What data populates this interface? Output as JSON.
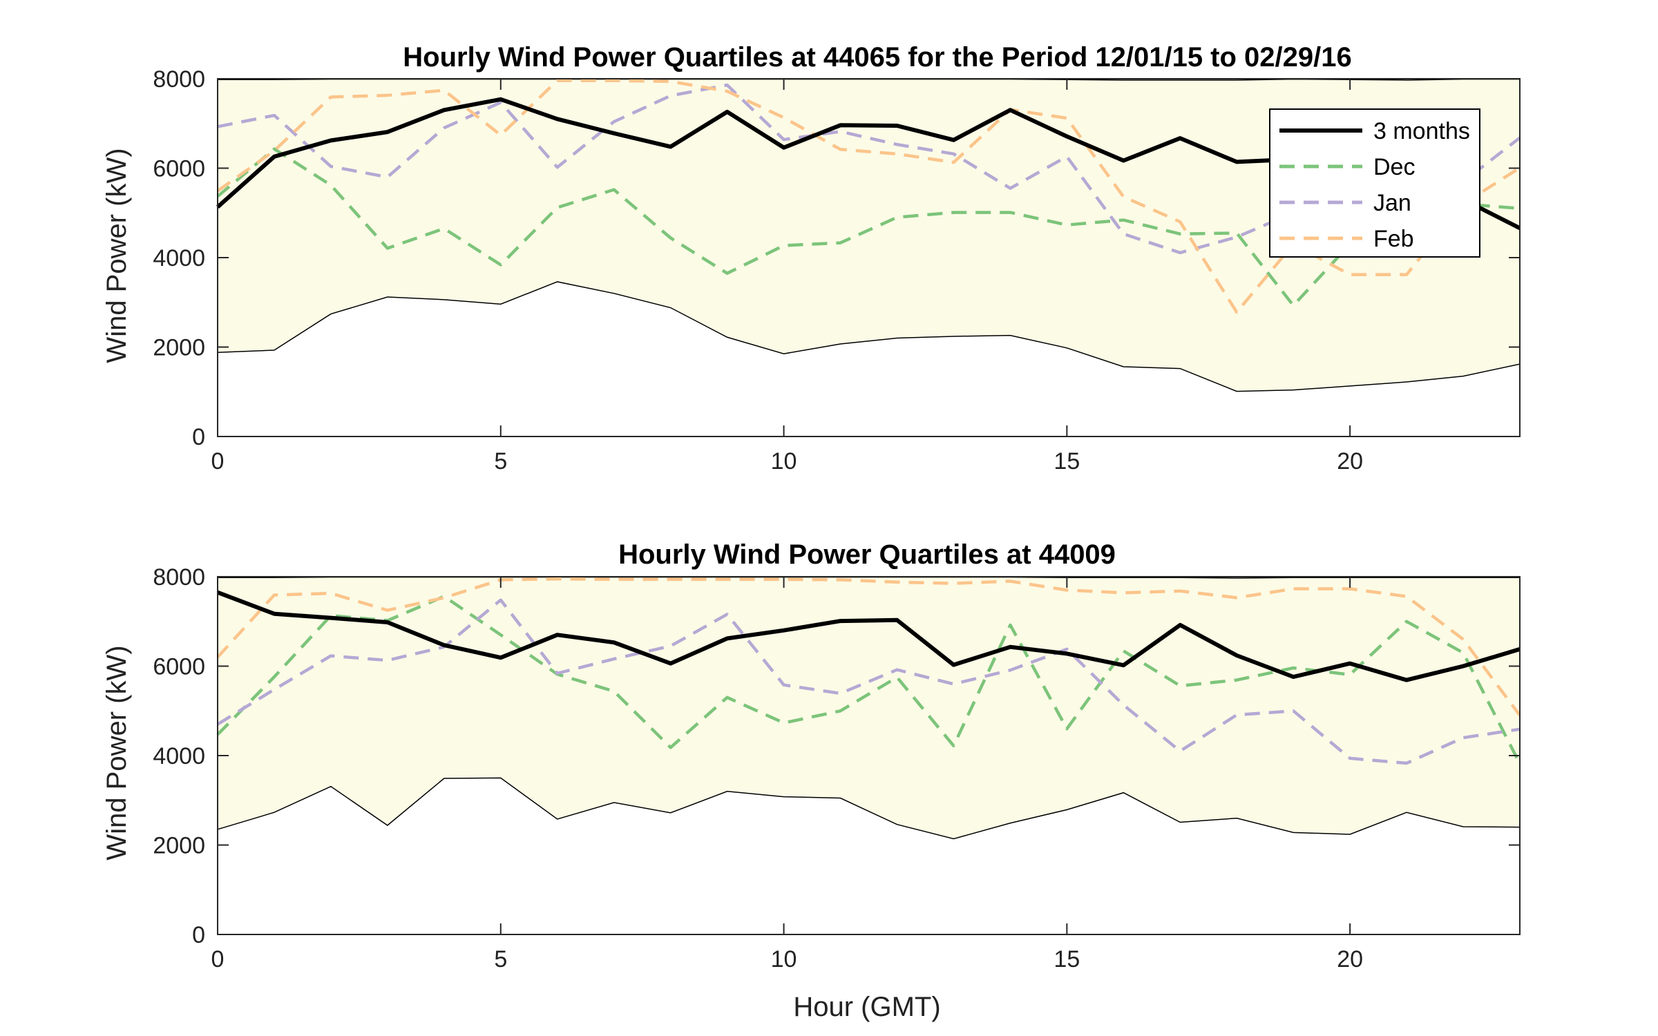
{
  "chart_data": [
    {
      "type": "line",
      "title": "Hourly Wind Power Quartiles at 44065 for the Period 12/01/15 to 02/29/16",
      "xlabel": "",
      "ylabel": "Wind Power (kW)",
      "xlim": [
        0,
        23
      ],
      "ylim": [
        0,
        8000
      ],
      "xticks": [
        0,
        5,
        10,
        15,
        20
      ],
      "yticks": [
        0,
        2000,
        4000,
        6000,
        8000
      ],
      "grid": false,
      "legend": {
        "placement": "top-right",
        "entries": [
          "3 months",
          "Dec",
          "Jan",
          "Feb"
        ]
      },
      "x": [
        0,
        1,
        2,
        3,
        4,
        5,
        6,
        7,
        8,
        9,
        10,
        11,
        12,
        13,
        14,
        15,
        16,
        17,
        18,
        19,
        20,
        21,
        22,
        23
      ],
      "band": {
        "fill_color": "#fcfbe6",
        "lower": [
          1880,
          1930,
          2740,
          3120,
          3060,
          2960,
          3460,
          3200,
          2880,
          2220,
          1850,
          2070,
          2200,
          2240,
          2260,
          1980,
          1560,
          1520,
          1010,
          1040,
          1130,
          1220,
          1350,
          1620
        ],
        "upper": [
          7980,
          7980,
          7990,
          7990,
          7990,
          7990,
          7990,
          7990,
          7990,
          7990,
          7990,
          7990,
          7990,
          7990,
          7990,
          7980,
          7970,
          7970,
          7970,
          7990,
          7980,
          7970,
          7990,
          7990
        ]
      },
      "series": [
        {
          "name": "3 months",
          "color": "#000000",
          "style": "solid",
          "values": [
            5130,
            6260,
            6620,
            6810,
            7300,
            7540,
            7100,
            6780,
            6480,
            7260,
            6460,
            6960,
            6950,
            6630,
            7300,
            6710,
            6170,
            6670,
            6140,
            6200,
            6300,
            6280,
            5300,
            4660
          ]
        },
        {
          "name": "Dec",
          "color": "#7cc47a",
          "style": "dashed",
          "values": [
            5370,
            6430,
            5620,
            4210,
            4650,
            3840,
            5120,
            5520,
            4440,
            3650,
            4270,
            4330,
            4900,
            5010,
            5010,
            4730,
            4840,
            4530,
            4550,
            2930,
            4300,
            5300,
            5200,
            5100
          ]
        },
        {
          "name": "Jan",
          "color": "#b5a8d4",
          "style": "dashed",
          "values": [
            6930,
            7180,
            6040,
            5800,
            6900,
            7470,
            6020,
            7040,
            7620,
            7860,
            6640,
            6820,
            6530,
            6320,
            5550,
            6260,
            4530,
            4110,
            4460,
            5000,
            5500,
            5650,
            5700,
            6680
          ]
        },
        {
          "name": "Feb",
          "color": "#fbc48a",
          "style": "dashed",
          "values": [
            5490,
            6390,
            7590,
            7630,
            7740,
            6740,
            7960,
            7960,
            7940,
            7720,
            7130,
            6420,
            6320,
            6130,
            7310,
            7120,
            5360,
            4800,
            2780,
            4300,
            3620,
            3620,
            5200,
            6010
          ]
        }
      ]
    },
    {
      "type": "line",
      "title": "Hourly Wind Power Quartiles at 44009",
      "xlabel": "Hour (GMT)",
      "ylabel": "Wind Power (kW)",
      "xlim": [
        0,
        23
      ],
      "ylim": [
        0,
        8000
      ],
      "xticks": [
        0,
        5,
        10,
        15,
        20
      ],
      "yticks": [
        0,
        2000,
        4000,
        6000,
        8000
      ],
      "grid": false,
      "x": [
        0,
        1,
        2,
        3,
        4,
        5,
        6,
        7,
        8,
        9,
        10,
        11,
        12,
        13,
        14,
        15,
        16,
        17,
        18,
        19,
        20,
        21,
        22,
        23
      ],
      "band": {
        "fill_color": "#fcfbe6",
        "lower": [
          2350,
          2730,
          3310,
          2440,
          3490,
          3500,
          2580,
          2950,
          2720,
          3200,
          3080,
          3050,
          2460,
          2140,
          2490,
          2790,
          3170,
          2510,
          2600,
          2280,
          2240,
          2730,
          2410,
          2400
        ],
        "upper": [
          7980,
          7980,
          7990,
          7990,
          7990,
          7990,
          7990,
          7990,
          7990,
          7990,
          7990,
          7990,
          7990,
          7990,
          7990,
          7980,
          7980,
          7980,
          7970,
          7980,
          7980,
          7980,
          7980,
          7980
        ]
      },
      "series": [
        {
          "name": "3 months",
          "color": "#000000",
          "style": "solid",
          "values": [
            7650,
            7170,
            7080,
            6980,
            6470,
            6190,
            6700,
            6530,
            6060,
            6620,
            6800,
            7010,
            7030,
            6030,
            6430,
            6280,
            6020,
            6920,
            6240,
            5760,
            6060,
            5690,
            6000,
            6380
          ]
        },
        {
          "name": "Dec",
          "color": "#7cc47a",
          "style": "dashed",
          "values": [
            4470,
            5760,
            7130,
            7020,
            7560,
            6700,
            5820,
            5440,
            4180,
            5300,
            4730,
            5000,
            5750,
            4220,
            6920,
            4600,
            6340,
            5560,
            5690,
            5960,
            5810,
            7000,
            6300,
            3820
          ]
        },
        {
          "name": "Jan",
          "color": "#b5a8d4",
          "style": "dashed",
          "values": [
            4700,
            5480,
            6230,
            6130,
            6430,
            7480,
            5840,
            6160,
            6450,
            7160,
            5580,
            5390,
            5920,
            5600,
            5910,
            6380,
            5130,
            4100,
            4910,
            5000,
            3940,
            3830,
            4400,
            4590
          ]
        },
        {
          "name": "Feb",
          "color": "#fbc48a",
          "style": "dashed",
          "values": [
            6200,
            7590,
            7630,
            7250,
            7530,
            7930,
            7950,
            7940,
            7940,
            7940,
            7940,
            7930,
            7880,
            7850,
            7900,
            7700,
            7640,
            7680,
            7530,
            7730,
            7730,
            7560,
            6600,
            4900
          ]
        }
      ]
    }
  ]
}
